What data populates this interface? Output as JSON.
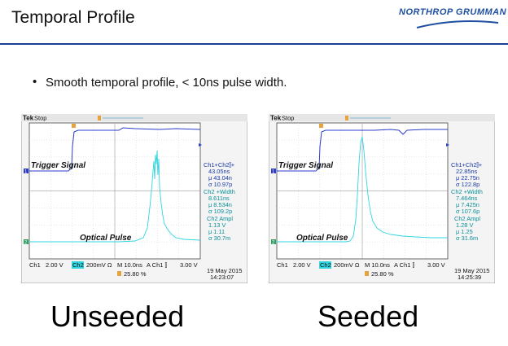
{
  "slide": {
    "title": "Temporal Profile",
    "logo": "NORTHROP GRUMMAN",
    "bullet": "Smooth temporal profile, < 10ns pulse width."
  },
  "colors": {
    "rule": "#1c3e94",
    "ch1_trace": "#2b3cc8",
    "ch2_trace": "#2fd6e0",
    "screen_bg": "#ffffff",
    "grid": "#b8b8b8"
  },
  "scopes": [
    {
      "caption": "Unseeded",
      "tek": "Tek",
      "stop": "Stop",
      "trigger_label": "Trigger Signal",
      "optical_label": "Optical Pulse",
      "ch1_marker": "1",
      "ch2_marker": "2",
      "readout": {
        "r1": "Ch1+Ch2⫿+",
        "r2": "43.05ns",
        "r3": "μ 43.04n",
        "r4": "σ 10.97p",
        "r5": "Ch2 +Width",
        "r6": "8.611ns",
        "r7": "μ 8.534n",
        "r8": "σ 109.2p",
        "r9": "Ch2 Ampl",
        "r10": "1.13 V",
        "r11": "μ 1.11",
        "r12": "σ 30.7m"
      },
      "status": {
        "ch1": "Ch1",
        "ch1_scale": "2.00 V",
        "ch2": "Ch2",
        "ch2_scale": "200mV Ω",
        "time": "M 10.0ns",
        "trig": "A  Ch1  ⫿",
        "trig_level": "3.00 V",
        "trig_pos": "25.80 %",
        "date": "19 May 2015",
        "clock": "14:23:07"
      }
    },
    {
      "caption": "Seeded",
      "tek": "Tek",
      "stop": "Stop",
      "trigger_label": "Trigger Signal",
      "optical_label": "Optical Pulse",
      "ch1_marker": "1",
      "ch2_marker": "2",
      "readout": {
        "r1": "Ch1+Ch2⫿+",
        "r2": "22.85ns",
        "r3": "μ 22.75n",
        "r4": "σ 122.8p",
        "r5": "Ch2 +Width",
        "r6": "7.464ns",
        "r7": "μ 7.425n",
        "r8": "σ 107.6p",
        "r9": "Ch2 Ampl",
        "r10": "1.28 V",
        "r11": "μ 1.25",
        "r12": "σ 31.6m"
      },
      "status": {
        "ch1": "Ch1",
        "ch1_scale": "2.00 V",
        "ch2": "Ch2",
        "ch2_scale": "200mV Ω",
        "time": "M 10.0ns",
        "trig": "A  Ch1  ⫿",
        "trig_level": "3.00 V",
        "trig_pos": "25.80 %",
        "date": "19 May 2015",
        "clock": "14:25:39"
      }
    }
  ]
}
